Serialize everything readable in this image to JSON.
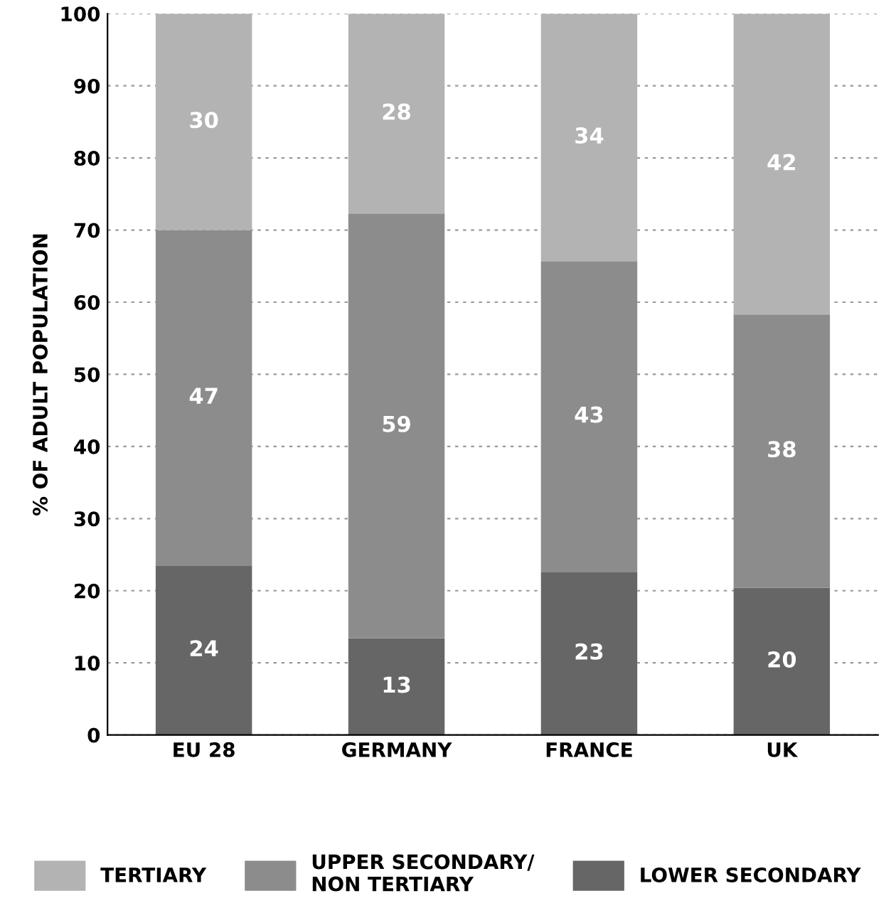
{
  "chart_data": {
    "type": "bar",
    "stacked": true,
    "ylabel": "% OF ADULT POPULATION",
    "categories": [
      "EU 28",
      "GERMANY",
      "FRANCE",
      "UK"
    ],
    "series": [
      {
        "name": "LOWER SECONDARY",
        "color": "#666666",
        "values": [
          23.5,
          13.4,
          22.6,
          20.4
        ],
        "value_labels": [
          "24",
          "13",
          "23",
          "20"
        ]
      },
      {
        "name": "UPPER SECONDARY/\nNON TERTIARY",
        "color": "#8c8c8c",
        "values": [
          46.5,
          58.9,
          43.1,
          37.9
        ],
        "value_labels": [
          "47",
          "59",
          "43",
          "38"
        ]
      },
      {
        "name": "TERTIARY",
        "color": "#b3b3b3",
        "values": [
          30.0,
          27.7,
          34.3,
          41.7
        ],
        "value_labels": [
          "30",
          "28",
          "34",
          "42"
        ]
      }
    ],
    "ylim": [
      0,
      100
    ],
    "yticks": [
      0,
      10,
      20,
      30,
      40,
      50,
      60,
      70,
      80,
      90,
      100
    ],
    "grid": "y",
    "legend": "bottom"
  }
}
